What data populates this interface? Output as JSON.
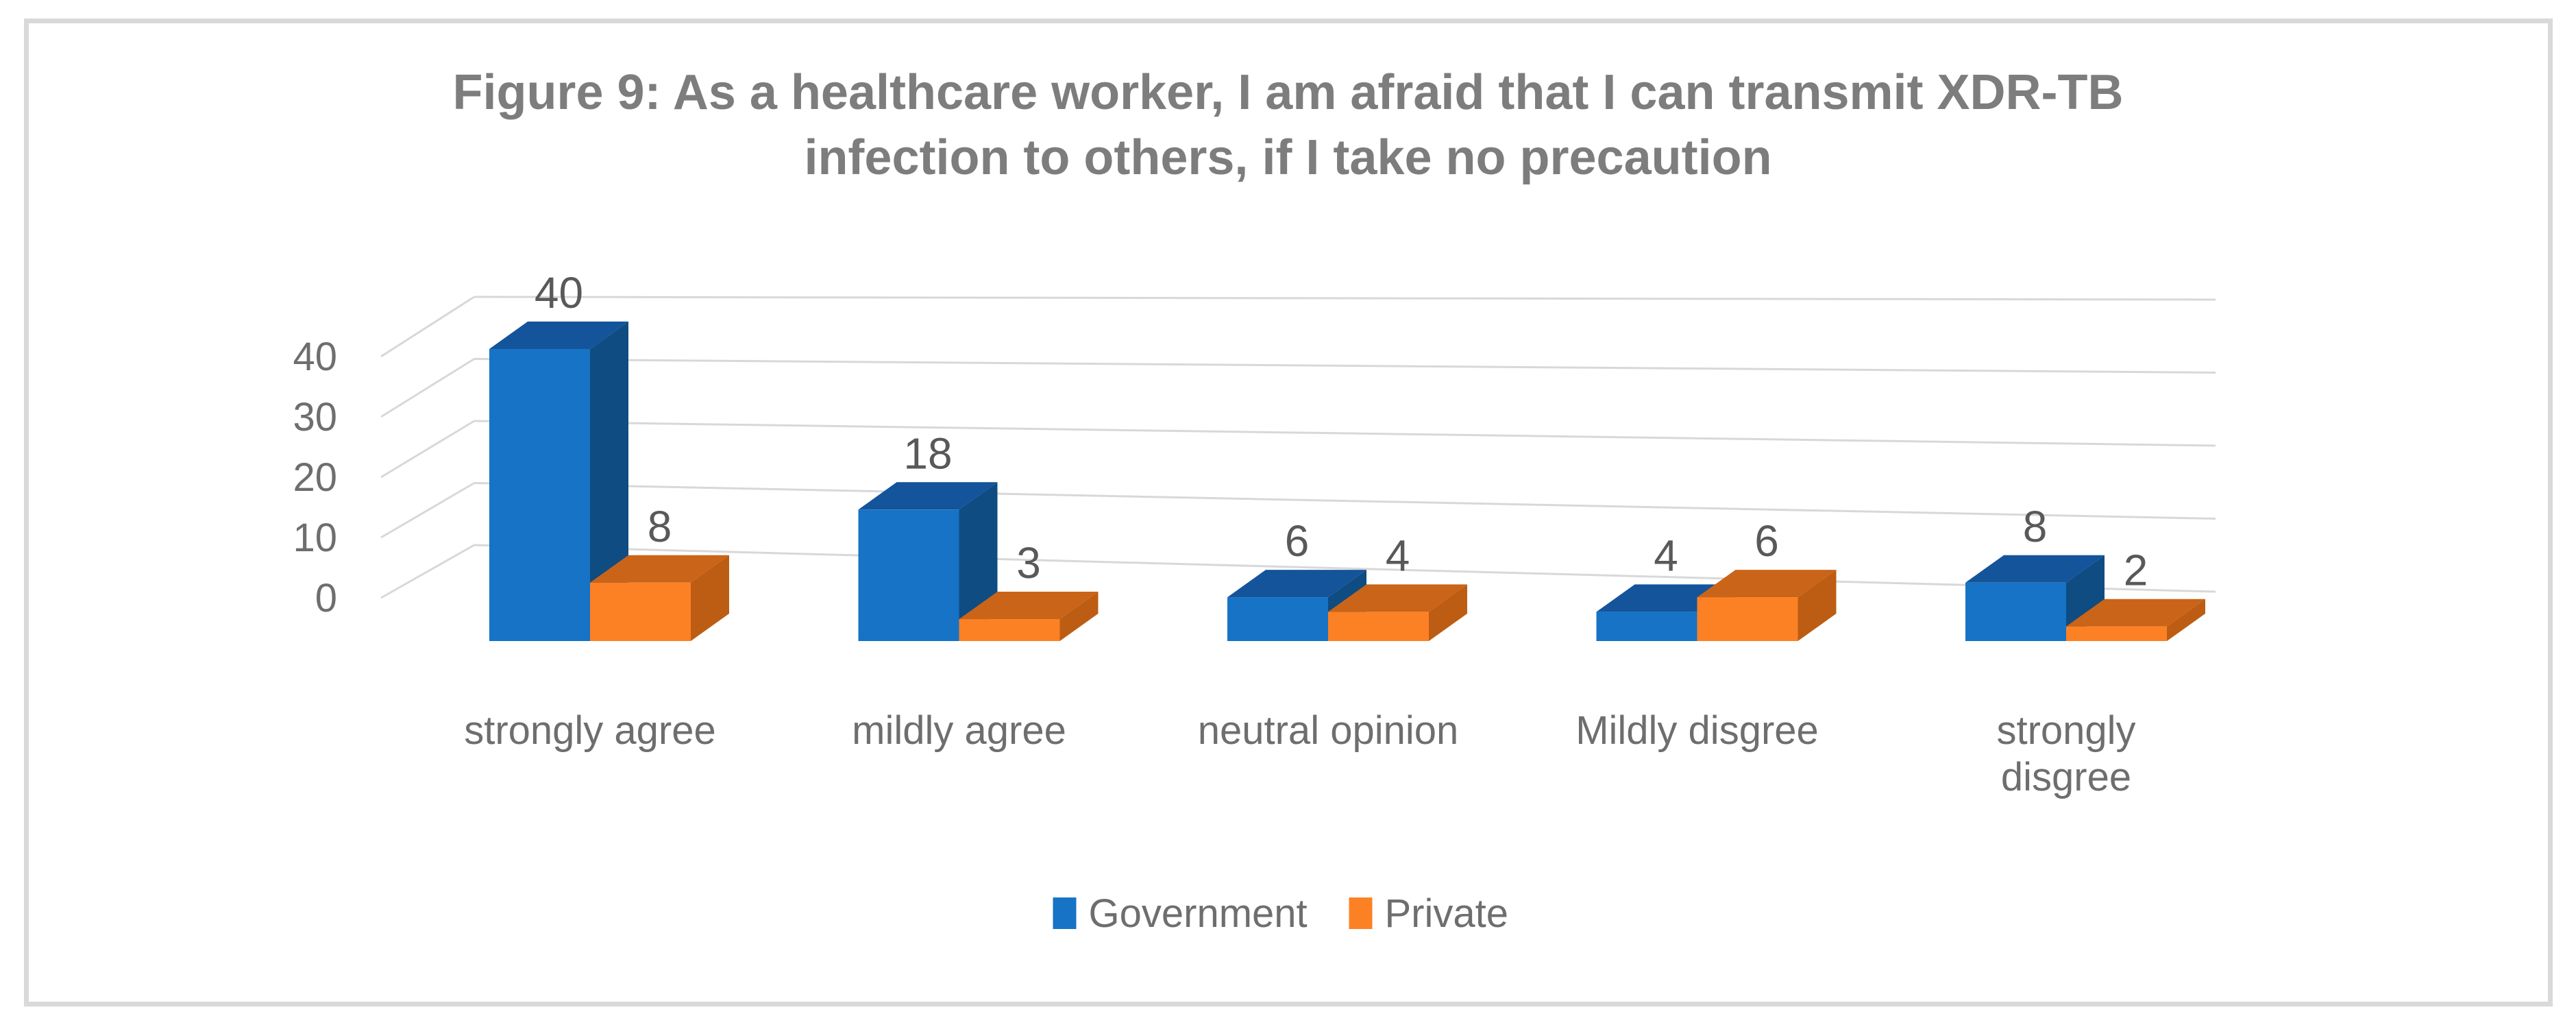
{
  "frame": {
    "border_color": "#D9D9D9",
    "background": "#FFFFFF"
  },
  "title": {
    "line1": "Figure 9: As a healthcare worker, I am afraid that I can transmit XDR-TB",
    "line2": "infection to others, if I take no precaution",
    "color": "#7D7D7D"
  },
  "chart_data": {
    "type": "bar",
    "style": "3d-clustered-column",
    "title": "Figure 9: As a healthcare worker, I am afraid that I can transmit XDR-TB infection to others, if I take no precaution",
    "categories": [
      "strongly agree",
      "mildly agree",
      "neutral opinion",
      "Mildly disgree",
      "strongly disgree"
    ],
    "series": [
      {
        "name": "Government",
        "values": [
          40,
          18,
          6,
          4,
          8
        ],
        "color_front": "#1673C5",
        "color_side": "#0F4C82",
        "color_top": "#14549B"
      },
      {
        "name": "Private",
        "values": [
          8,
          3,
          4,
          6,
          2
        ],
        "color_front": "#FC8125",
        "color_side": "#BC5D13",
        "color_top": "#CA6418"
      }
    ],
    "data_labels_shown": true,
    "yticks": [
      0,
      10,
      20,
      30,
      40
    ],
    "ylim": [
      0,
      40
    ],
    "grid": true,
    "legend_position": "bottom",
    "xlabel": "",
    "ylabel": "",
    "colors": {
      "gridline": "#D8D8D8",
      "axis_text": "#6E6E6E",
      "data_label_text": "#595959",
      "legend_text": "#6E6E6E"
    }
  }
}
